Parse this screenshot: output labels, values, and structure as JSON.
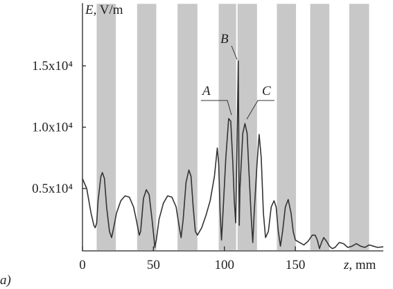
{
  "chart_data": {
    "type": "line",
    "y_label": "E, V/m",
    "x_label": "z, mm",
    "panel_label": "a)",
    "xlim": [
      0,
      212
    ],
    "ylim": [
      0,
      20000
    ],
    "xticks": [
      0,
      50,
      100,
      150
    ],
    "yticks": [
      {
        "value": 5000,
        "label": "0.5x10⁴"
      },
      {
        "value": 10000,
        "label": "1.0x10⁴"
      },
      {
        "value": 15000,
        "label": "1.5x10⁴"
      }
    ],
    "bands": [
      [
        10,
        23.5
      ],
      [
        38.5,
        52
      ],
      [
        67,
        81
      ],
      [
        96,
        108.3
      ],
      [
        109.3,
        123
      ],
      [
        137,
        150.5
      ],
      [
        160.5,
        174
      ],
      [
        188,
        202
      ]
    ],
    "band_color": "#c8c8c8",
    "annotations": [
      "A",
      "B",
      "C"
    ],
    "series": [
      {
        "color": "#333333",
        "x": [
          0,
          3,
          6,
          8,
          9,
          10,
          11,
          13,
          14,
          15.5,
          17,
          19,
          20.5,
          22,
          24,
          27,
          30,
          33,
          36,
          38,
          40,
          41,
          43,
          45,
          47,
          49,
          50.5,
          51,
          52,
          54,
          57,
          60,
          63,
          66,
          68,
          69.5,
          71,
          73,
          75,
          76.5,
          78,
          79.5,
          81,
          84,
          87,
          90,
          93,
          95,
          96,
          97,
          98,
          99,
          101,
          103,
          104.5,
          106,
          107,
          108,
          109.8,
          110.5,
          111,
          113,
          114.5,
          116,
          117.5,
          119,
          120,
          121,
          123,
          124.5,
          126,
          127.5,
          129,
          131,
          133,
          135,
          136.5,
          138,
          139.5,
          141,
          143,
          145,
          147,
          148.5,
          150,
          153,
          156,
          159,
          162,
          164,
          165.5,
          167,
          168.5,
          170,
          172,
          174,
          176,
          178,
          181,
          184,
          187,
          190,
          193,
          196,
          199,
          202,
          205,
          208,
          212
        ],
        "values": [
          5800,
          5000,
          3000,
          2000,
          1800,
          2200,
          4000,
          6000,
          6300,
          5800,
          3500,
          1500,
          1000,
          1800,
          3000,
          4000,
          4400,
          4300,
          3500,
          2400,
          1200,
          1500,
          4200,
          4900,
          4500,
          2500,
          800,
          200,
          800,
          2500,
          3800,
          4400,
          4300,
          3500,
          2000,
          1000,
          2500,
          5500,
          6500,
          6000,
          3500,
          1500,
          1200,
          1800,
          2800,
          4000,
          6000,
          8300,
          7000,
          3000,
          800,
          3000,
          7500,
          10700,
          10500,
          7000,
          4000,
          2200,
          15400,
          2000,
          5000,
          9500,
          10300,
          9500,
          6000,
          2500,
          600,
          3000,
          7000,
          9400,
          7500,
          3000,
          1000,
          1500,
          3500,
          4000,
          3500,
          1500,
          300,
          1500,
          3500,
          4100,
          3000,
          1500,
          800,
          600,
          400,
          700,
          1200,
          1200,
          800,
          100,
          600,
          1000,
          700,
          300,
          100,
          200,
          600,
          500,
          200,
          300,
          500,
          300,
          200,
          400,
          300,
          200,
          250
        ]
      }
    ]
  }
}
